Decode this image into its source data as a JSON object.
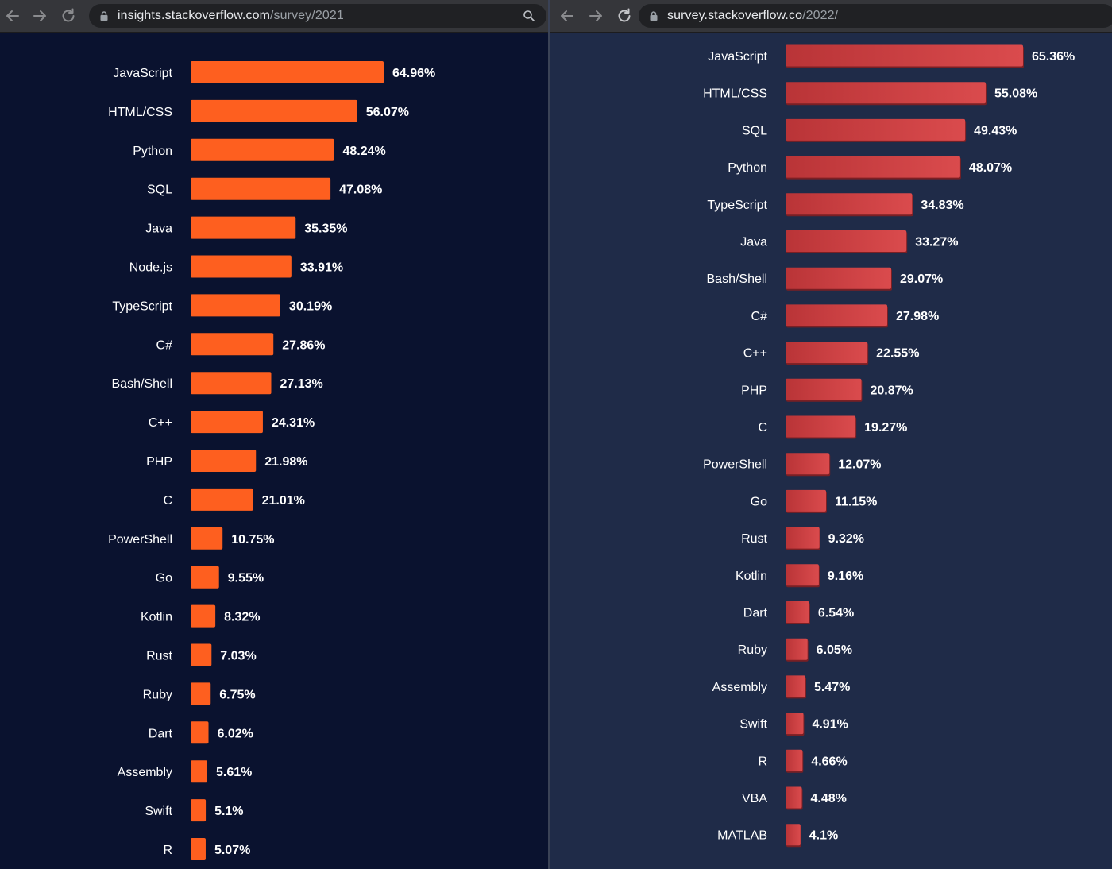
{
  "left_window": {
    "url_host": "insights.stackoverflow.com",
    "url_path": "/survey/2021",
    "icons": [
      "back-arrow-icon",
      "forward-arrow-icon",
      "reload-icon",
      "lock-icon",
      "search-icon"
    ]
  },
  "right_window": {
    "url_host": "survey.stackoverflow.co",
    "url_path": "/2022/",
    "icons": [
      "back-arrow-icon",
      "forward-arrow-icon",
      "reload-icon",
      "lock-icon"
    ]
  },
  "colors": {
    "bar_2021": "#fe5f1f",
    "bar_2022_dark": "#b93437",
    "bar_2022_light": "#da4b4d",
    "bg_2021": "#0a122f",
    "bg_2022": "#1f2b48"
  },
  "chart_data": [
    {
      "type": "bar",
      "orientation": "horizontal",
      "categories": [
        "JavaScript",
        "HTML/CSS",
        "Python",
        "SQL",
        "Java",
        "Node.js",
        "TypeScript",
        "C#",
        "Bash/Shell",
        "C++",
        "PHP",
        "C",
        "PowerShell",
        "Go",
        "Kotlin",
        "Rust",
        "Ruby",
        "Dart",
        "Assembly",
        "Swift",
        "R"
      ],
      "values": [
        64.96,
        56.07,
        48.24,
        47.08,
        35.35,
        33.91,
        30.19,
        27.86,
        27.13,
        24.31,
        21.98,
        21.01,
        10.75,
        9.55,
        8.32,
        7.03,
        6.75,
        6.02,
        5.61,
        5.1,
        5.07
      ],
      "value_labels": [
        "64.96%",
        "56.07%",
        "48.24%",
        "47.08%",
        "35.35%",
        "33.91%",
        "30.19%",
        "27.86%",
        "27.13%",
        "24.31%",
        "21.98%",
        "21.01%",
        "10.75%",
        "9.55%",
        "8.32%",
        "7.03%",
        "6.75%",
        "6.02%",
        "5.61%",
        "5.1%",
        "5.07%"
      ],
      "grid": false,
      "legend": "none"
    },
    {
      "type": "bar",
      "orientation": "horizontal",
      "categories": [
        "JavaScript",
        "HTML/CSS",
        "SQL",
        "Python",
        "TypeScript",
        "Java",
        "Bash/Shell",
        "C#",
        "C++",
        "PHP",
        "C",
        "PowerShell",
        "Go",
        "Rust",
        "Kotlin",
        "Dart",
        "Ruby",
        "Assembly",
        "Swift",
        "R",
        "VBA",
        "MATLAB"
      ],
      "values": [
        65.36,
        55.08,
        49.43,
        48.07,
        34.83,
        33.27,
        29.07,
        27.98,
        22.55,
        20.87,
        19.27,
        12.07,
        11.15,
        9.32,
        9.16,
        6.54,
        6.05,
        5.47,
        4.91,
        4.66,
        4.48,
        4.1
      ],
      "value_labels": [
        "65.36%",
        "55.08%",
        "49.43%",
        "48.07%",
        "34.83%",
        "33.27%",
        "29.07%",
        "27.98%",
        "22.55%",
        "20.87%",
        "19.27%",
        "12.07%",
        "11.15%",
        "9.32%",
        "9.16%",
        "6.54%",
        "6.05%",
        "5.47%",
        "4.91%",
        "4.66%",
        "4.48%",
        "4.1%"
      ],
      "grid": false,
      "legend": "none"
    }
  ]
}
